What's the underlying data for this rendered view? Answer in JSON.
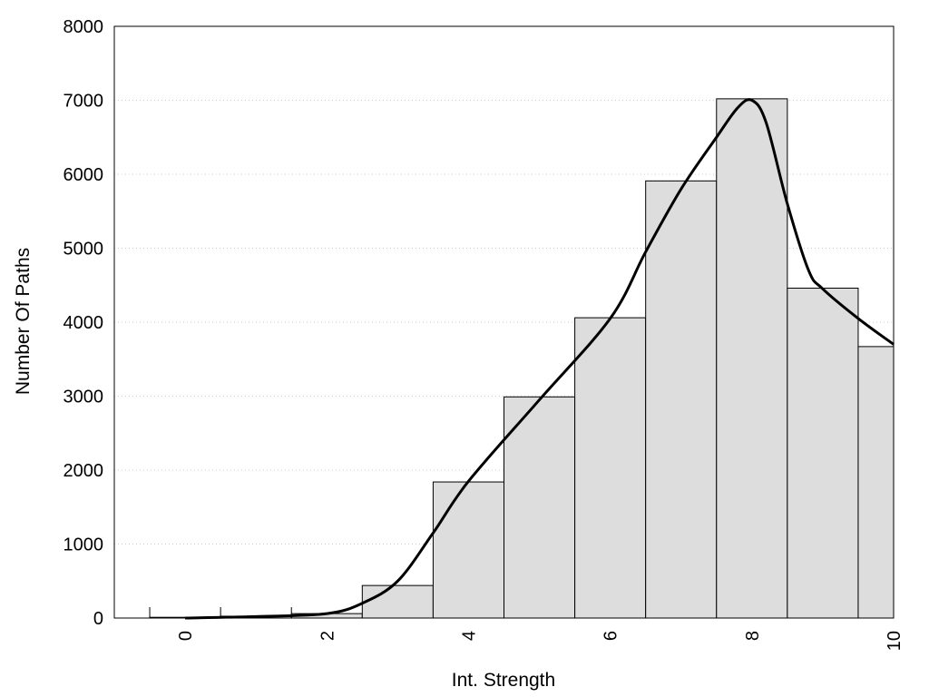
{
  "chart_data": {
    "type": "bar",
    "title": "",
    "xlabel": "Int. Strength",
    "ylabel": "Number Of Paths",
    "xlim": [
      -1,
      10
    ],
    "ylim": [
      0,
      8000
    ],
    "x_ticks": [
      "0",
      "2",
      "4",
      "6",
      "8",
      "10"
    ],
    "y_ticks": [
      "0",
      "1000",
      "2000",
      "3000",
      "4000",
      "5000",
      "6000",
      "7000",
      "8000"
    ],
    "grid": "horizontal dotted",
    "legend": "none",
    "bins": [
      {
        "x_start": -0.5,
        "x_end": 0.5,
        "value": 10
      },
      {
        "x_start": 0.5,
        "x_end": 1.5,
        "value": 25
      },
      {
        "x_start": 1.5,
        "x_end": 2.5,
        "value": 60
      },
      {
        "x_start": 2.5,
        "x_end": 3.5,
        "value": 440
      },
      {
        "x_start": 3.5,
        "x_end": 4.5,
        "value": 1840
      },
      {
        "x_start": 4.5,
        "x_end": 5.5,
        "value": 2990
      },
      {
        "x_start": 5.5,
        "x_end": 6.5,
        "value": 4060
      },
      {
        "x_start": 6.5,
        "x_end": 7.5,
        "value": 5910
      },
      {
        "x_start": 7.5,
        "x_end": 8.5,
        "value": 7020
      },
      {
        "x_start": 8.5,
        "x_end": 9.5,
        "value": 4460
      },
      {
        "x_start": 9.5,
        "x_end": 10.0,
        "value": 3670
      }
    ],
    "density_curve": {
      "x": [
        0,
        1,
        2,
        2.5,
        3,
        3.5,
        4,
        5,
        6,
        6.5,
        7,
        7.5,
        7.8,
        8,
        8.2,
        8.5,
        8.8,
        9,
        9.5,
        10
      ],
      "y": [
        0,
        20,
        60,
        200,
        500,
        1150,
        1850,
        2950,
        4050,
        4950,
        5800,
        6500,
        6900,
        7000,
        6700,
        5600,
        4700,
        4450,
        4050,
        3700
      ]
    },
    "colors": {
      "bar_fill": "#dddddd",
      "bar_stroke": "#000000",
      "curve": "#000000",
      "grid": "#cccccc"
    }
  }
}
